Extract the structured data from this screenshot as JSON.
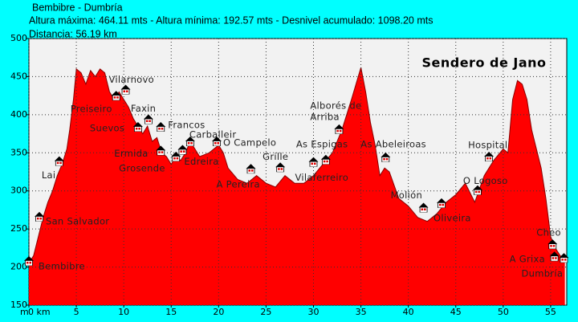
{
  "chart_data": {
    "type": "area",
    "header": [
      "Bembibre - Dumbría",
      "Altura máxima: 464.11 mts - Altura mínima: 192.57 mts - Desnivel acumulado: 1098.20 mts",
      "Distancia: 56.19 km"
    ],
    "title": "Sendero de Jano",
    "y_unit": "m",
    "x": [
      0,
      0.5,
      1,
      1.5,
      2,
      2.5,
      3,
      3.5,
      4,
      4.3,
      4.7,
      5,
      5.5,
      6,
      6.5,
      7,
      7.5,
      8,
      8.5,
      9,
      9.5,
      10,
      10.5,
      11,
      11.5,
      12,
      12.5,
      13,
      13.5,
      14,
      14.5,
      15,
      15.5,
      16,
      16.5,
      17,
      17.5,
      18,
      19,
      20,
      20.5,
      21,
      22,
      23,
      24,
      25,
      26,
      27,
      28,
      29,
      30,
      31,
      32,
      33,
      34,
      35,
      35.5,
      36,
      36.5,
      37,
      37.5,
      38,
      39,
      40,
      41,
      42,
      43,
      44,
      45,
      46,
      47,
      48,
      49,
      50,
      50.5,
      51,
      51.5,
      52,
      52.5,
      53,
      54,
      54.5,
      55,
      55.5,
      56,
      56.5
    ],
    "values": [
      205,
      215,
      240,
      265,
      285,
      300,
      320,
      335,
      355,
      380,
      420,
      460,
      455,
      440,
      458,
      450,
      460,
      455,
      430,
      420,
      430,
      420,
      410,
      395,
      385,
      375,
      385,
      365,
      370,
      350,
      345,
      335,
      345,
      340,
      350,
      365,
      355,
      345,
      350,
      360,
      350,
      330,
      315,
      310,
      320,
      310,
      305,
      320,
      310,
      310,
      320,
      335,
      350,
      380,
      420,
      462,
      430,
      390,
      360,
      320,
      330,
      325,
      290,
      280,
      265,
      260,
      270,
      285,
      295,
      310,
      285,
      320,
      340,
      355,
      350,
      420,
      445,
      440,
      420,
      380,
      330,
      290,
      240,
      225,
      215,
      210
    ],
    "color": "#ff0000",
    "xlim": [
      0,
      56.7
    ],
    "ylim": [
      150,
      500
    ],
    "xticks": [
      {
        "value": 0,
        "label": "0 km"
      },
      5,
      10,
      15,
      20,
      25,
      30,
      35,
      40,
      45,
      50,
      55
    ],
    "yticks": [
      150,
      200,
      250,
      300,
      350,
      400,
      450,
      500
    ],
    "grid": true,
    "waypoints": [
      {
        "label": [
          "Bembibre"
        ],
        "km": 0,
        "elevation": 207
      },
      {
        "label": [
          "San Salvador"
        ],
        "km": 1.1,
        "elevation": 265
      },
      {
        "label": [
          "Lai"
        ],
        "km": 3.2,
        "elevation": 338
      },
      {
        "label": [
          "Preiseiro"
        ],
        "km": 9.2,
        "elevation": 424
      },
      {
        "label": [
          "Vilarnovo"
        ],
        "km": 10.2,
        "elevation": 432
      },
      {
        "label": [
          "Suevos"
        ],
        "km": 11.5,
        "elevation": 383
      },
      {
        "label": [
          "Faxin"
        ],
        "km": 12.6,
        "elevation": 393
      },
      {
        "label": [
          "Francos"
        ],
        "km": 13.9,
        "elevation": 383
      },
      {
        "label": [
          "Ermida"
        ],
        "km": 13.9,
        "elevation": 352
      },
      {
        "label": [
          "Grosende"
        ],
        "km": 15.5,
        "elevation": 344
      },
      {
        "label": [
          "Edreira"
        ],
        "km": 16.2,
        "elevation": 353
      },
      {
        "label": [
          "Carballeir"
        ],
        "km": 17,
        "elevation": 364
      },
      {
        "label": [
          "O Campelo"
        ],
        "km": 19.8,
        "elevation": 364
      },
      {
        "label": [
          "A Pereira"
        ],
        "km": 23.4,
        "elevation": 328
      },
      {
        "label": [
          "Grille"
        ],
        "km": 26.5,
        "elevation": 330
      },
      {
        "label": [
          "Vilaferreiro"
        ],
        "km": 30,
        "elevation": 337
      },
      {
        "label": [
          "As Espigas"
        ],
        "km": 31.3,
        "elevation": 340
      },
      {
        "label": [
          "Alborés de",
          "Arriba"
        ],
        "km": 32.7,
        "elevation": 380
      },
      {
        "label": [
          "As Abeleiroas"
        ],
        "km": 37.6,
        "elevation": 343
      },
      {
        "label": [
          "Molión"
        ],
        "km": 41.6,
        "elevation": 277
      },
      {
        "label": [
          "Oliveira"
        ],
        "km": 43.5,
        "elevation": 283
      },
      {
        "label": [
          "O Logoso"
        ],
        "km": 47.3,
        "elevation": 300
      },
      {
        "label": [
          "Hospital"
        ],
        "km": 48.5,
        "elevation": 344
      },
      {
        "label": [
          "Cheo"
        ],
        "km": 55.2,
        "elevation": 229
      },
      {
        "label": [
          "A Grixa"
        ],
        "km": 55.4,
        "elevation": 213
      },
      {
        "label": [
          "Dumbría"
        ],
        "km": 56.4,
        "elevation": 211
      }
    ]
  }
}
